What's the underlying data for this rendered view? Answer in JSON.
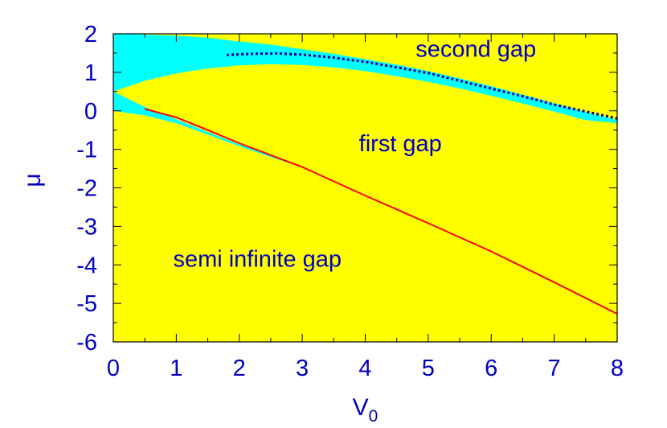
{
  "chart_data": {
    "type": "area",
    "xlabel": "V",
    "xlabel_sub": "0",
    "ylabel": "μ",
    "xlim": [
      0,
      8
    ],
    "ylim": [
      -6,
      2
    ],
    "x_ticks": [
      "0",
      "1",
      "2",
      "3",
      "4",
      "5",
      "6",
      "7",
      "8"
    ],
    "y_ticks": [
      "2",
      "1",
      "0",
      "-1",
      "-2",
      "-3",
      "-4",
      "-5",
      "-6"
    ],
    "grid": false,
    "colors": {
      "gap": "#ffff00",
      "band": "#00ffff",
      "text": "#0000c0",
      "solid_curve": "#ff0000",
      "dotted_curve": "#0000a0"
    },
    "regions": [
      {
        "kind": "band",
        "x": [
          0,
          0.5,
          1,
          1.5,
          2,
          2.5,
          3,
          3.5,
          4,
          4.5,
          5,
          5.5,
          6,
          6.5,
          7,
          7.5,
          8
        ],
        "upper": [
          2.0,
          1.98,
          1.95,
          1.9,
          1.8,
          1.72,
          1.6,
          1.48,
          1.34,
          1.2,
          1.03,
          0.84,
          0.64,
          0.42,
          0.2,
          -0.03,
          -0.24
        ],
        "lower": [
          0.5,
          0.78,
          0.97,
          1.1,
          1.18,
          1.21,
          1.19,
          1.13,
          1.03,
          0.9,
          0.75,
          0.58,
          0.39,
          0.19,
          -0.02,
          -0.24,
          -0.32
        ]
      },
      {
        "kind": "band",
        "x": [
          0,
          0.5,
          1,
          1.5,
          2,
          2.5,
          3
        ],
        "upper": [
          0.5,
          0.1,
          -0.22,
          -0.55,
          -0.87,
          -1.17,
          -1.45
        ],
        "lower": [
          0.0,
          -0.12,
          -0.32,
          -0.62,
          -0.92,
          -1.2,
          -1.47
        ]
      }
    ],
    "series": [
      {
        "style": "solid",
        "x": [
          0.5,
          1,
          1.5,
          2,
          2.5,
          3,
          4,
          5,
          6,
          7,
          8
        ],
        "y": [
          0.05,
          -0.17,
          -0.5,
          -0.84,
          -1.15,
          -1.46,
          -2.2,
          -2.92,
          -3.65,
          -4.45,
          -5.27
        ]
      },
      {
        "style": "dotted",
        "x": [
          1.8,
          2.2,
          2.6,
          3.0,
          3.5,
          4.0,
          4.5,
          5.0,
          5.5,
          6.0,
          6.5,
          7.0,
          7.5,
          8.0
        ],
        "y": [
          1.45,
          1.48,
          1.49,
          1.46,
          1.38,
          1.27,
          1.13,
          0.98,
          0.78,
          0.58,
          0.38,
          0.16,
          -0.02,
          -0.2
        ]
      }
    ],
    "annotations": [
      {
        "text": "second gap",
        "x": 4.8,
        "y": 1.4
      },
      {
        "text": "first gap",
        "x": 3.9,
        "y": -1.05
      },
      {
        "text": "semi infinite gap",
        "x": 0.95,
        "y": -4.05
      }
    ]
  }
}
